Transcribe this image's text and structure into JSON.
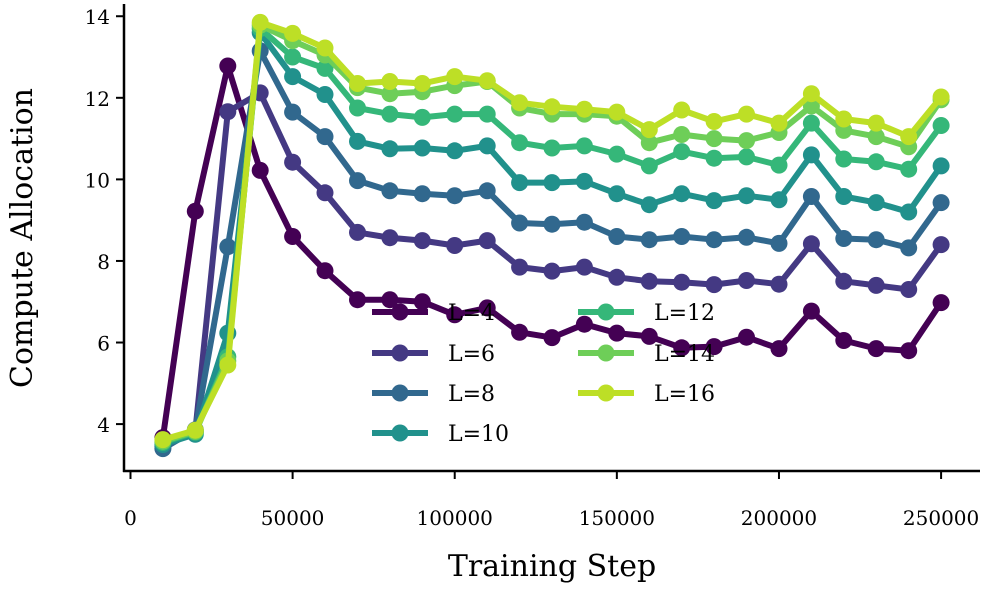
{
  "chart_data": {
    "type": "line",
    "title": "",
    "xlabel": "Training Step",
    "ylabel": "Compute Allocation",
    "xlim": [
      -2000,
      262000
    ],
    "ylim": [
      2.85,
      14.3
    ],
    "xticks": [
      0,
      50000,
      100000,
      150000,
      200000,
      250000
    ],
    "xtick_labels": [
      "0",
      "50000",
      "100000",
      "150000",
      "200000",
      "250000"
    ],
    "yticks": [
      4,
      6,
      8,
      10,
      12,
      14
    ],
    "ytick_labels": [
      "4",
      "6",
      "8",
      "10",
      "12",
      "14"
    ],
    "grid": false,
    "legend_position": "center-bottom",
    "x": [
      10000,
      20000,
      30000,
      40000,
      50000,
      60000,
      70000,
      80000,
      90000,
      100000,
      110000,
      120000,
      130000,
      140000,
      150000,
      160000,
      170000,
      180000,
      190000,
      200000,
      210000,
      220000,
      230000,
      240000,
      250000
    ],
    "series": [
      {
        "name": "L=4",
        "color": "#440154",
        "values": [
          3.67,
          9.22,
          12.78,
          10.22,
          8.6,
          7.76,
          7.05,
          7.05,
          7.0,
          6.68,
          6.85,
          6.25,
          6.12,
          6.45,
          6.23,
          6.15,
          5.87,
          5.9,
          6.13,
          5.85,
          6.77,
          6.05,
          5.85,
          5.8,
          6.98
        ]
      },
      {
        "name": "L=6",
        "color": "#443983",
        "values": [
          3.45,
          3.82,
          11.66,
          12.12,
          10.42,
          9.67,
          8.7,
          8.57,
          8.5,
          8.38,
          8.5,
          7.85,
          7.75,
          7.85,
          7.6,
          7.5,
          7.48,
          7.42,
          7.52,
          7.43,
          8.42,
          7.5,
          7.4,
          7.3,
          8.4
        ]
      },
      {
        "name": "L=8",
        "color": "#31688e",
        "values": [
          3.4,
          3.86,
          8.35,
          13.15,
          11.65,
          11.05,
          9.97,
          9.72,
          9.65,
          9.6,
          9.72,
          8.93,
          8.9,
          8.95,
          8.6,
          8.52,
          8.6,
          8.52,
          8.58,
          8.43,
          9.58,
          8.55,
          8.52,
          8.32,
          9.43
        ]
      },
      {
        "name": "L=10",
        "color": "#21918c",
        "values": [
          3.5,
          3.75,
          6.23,
          13.6,
          12.52,
          12.08,
          10.93,
          10.75,
          10.77,
          10.7,
          10.82,
          9.92,
          9.92,
          9.95,
          9.65,
          9.38,
          9.65,
          9.48,
          9.6,
          9.5,
          10.6,
          9.58,
          9.43,
          9.2,
          10.33
        ]
      },
      {
        "name": "L=12",
        "color": "#35b779",
        "values": [
          3.55,
          3.8,
          5.65,
          13.7,
          13.0,
          12.72,
          11.75,
          11.6,
          11.52,
          11.6,
          11.6,
          10.9,
          10.77,
          10.82,
          10.62,
          10.33,
          10.68,
          10.52,
          10.55,
          10.35,
          11.38,
          10.5,
          10.43,
          10.25,
          11.32
        ]
      },
      {
        "name": "L=14",
        "color": "#6ece58",
        "values": [
          3.58,
          3.82,
          5.55,
          13.78,
          13.4,
          13.05,
          12.25,
          12.1,
          12.15,
          12.3,
          12.4,
          11.75,
          11.6,
          11.6,
          11.55,
          10.9,
          11.1,
          11.0,
          10.95,
          11.15,
          11.8,
          11.2,
          11.05,
          10.8,
          11.95
        ]
      },
      {
        "name": "L=16",
        "color": "#bddf26",
        "values": [
          3.62,
          3.85,
          5.45,
          13.85,
          13.58,
          13.22,
          12.35,
          12.4,
          12.35,
          12.52,
          12.42,
          11.88,
          11.78,
          11.72,
          11.65,
          11.22,
          11.7,
          11.42,
          11.6,
          11.38,
          12.1,
          11.48,
          11.38,
          11.05,
          12.02
        ]
      }
    ]
  }
}
